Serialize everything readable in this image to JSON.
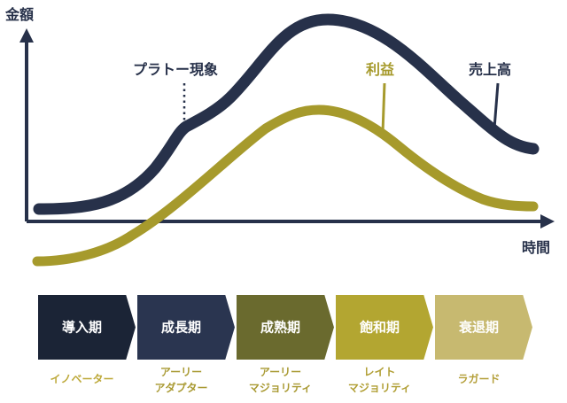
{
  "axes": {
    "y_label": "金額",
    "x_label": "時間"
  },
  "curves": {
    "sales_label": "売上高",
    "profit_label": "利益",
    "plateau_label": "プラトー現象"
  },
  "colors": {
    "sales": "#27314a",
    "profit": "#a69a2c",
    "axis": "#27314a"
  },
  "stages": [
    {
      "name": "導入期",
      "adopter": [
        "イノベーター"
      ],
      "color": "#1b2436",
      "text_color": "#bda93a"
    },
    {
      "name": "成長期",
      "adopter": [
        "アーリー",
        "アダプター"
      ],
      "color": "#2a3550",
      "text_color": "#a99a33"
    },
    {
      "name": "成熟期",
      "adopter": [
        "アーリー",
        "マジョリティ"
      ],
      "color": "#6a6a2e",
      "text_color": "#a99a33"
    },
    {
      "name": "飽和期",
      "adopter": [
        "レイト",
        "マジョリティ"
      ],
      "color": "#b3a631",
      "text_color": "#b09e33"
    },
    {
      "name": "衰退期",
      "adopter": [
        "ラガード"
      ],
      "color": "#c7b970",
      "text_color": "#b49f39"
    }
  ]
}
